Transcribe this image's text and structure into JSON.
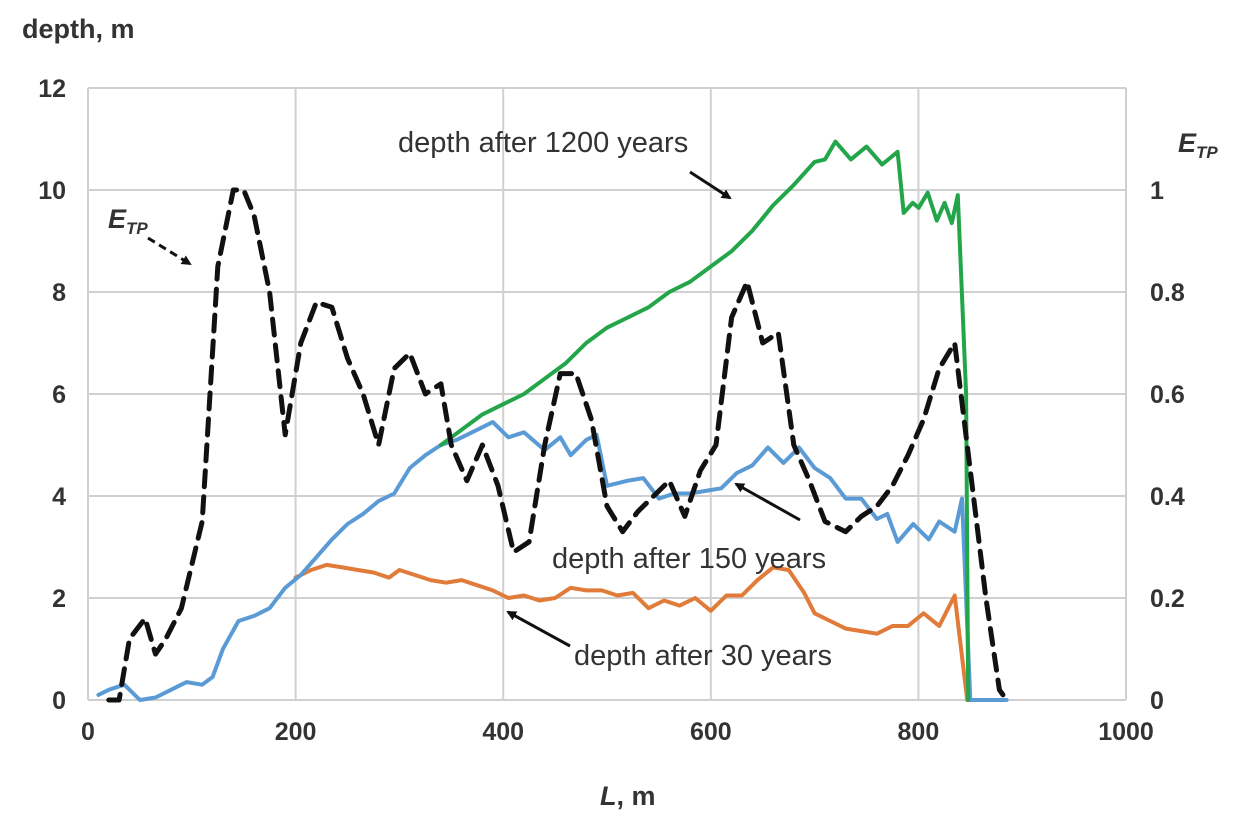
{
  "chart_data": {
    "type": "line",
    "y_title": "depth, m",
    "x_title_italic": "L",
    "x_title_rest": ", m",
    "y2_title_main": "E",
    "y2_title_sub": "TP",
    "xlim": [
      0,
      1000
    ],
    "ylim": [
      0,
      12
    ],
    "y2lim": [
      0,
      1.2
    ],
    "x_ticks": [
      "0",
      "200",
      "400",
      "600",
      "800",
      "1000"
    ],
    "y_ticks": [
      "0",
      "2",
      "4",
      "6",
      "8",
      "10",
      "12"
    ],
    "y2_ticks": [
      "0",
      "0.2",
      "0.4",
      "0.6",
      "0.8",
      "1"
    ],
    "grid": true,
    "series": [
      {
        "name": "depth after 30 years",
        "axis": "left",
        "color": "#E07B39",
        "dashed": false,
        "points": [
          [
            200,
            2.4
          ],
          [
            215,
            2.55
          ],
          [
            230,
            2.65
          ],
          [
            245,
            2.6
          ],
          [
            260,
            2.55
          ],
          [
            275,
            2.5
          ],
          [
            290,
            2.4
          ],
          [
            300,
            2.55
          ],
          [
            315,
            2.45
          ],
          [
            330,
            2.35
          ],
          [
            345,
            2.3
          ],
          [
            360,
            2.35
          ],
          [
            375,
            2.25
          ],
          [
            390,
            2.15
          ],
          [
            405,
            2.0
          ],
          [
            420,
            2.05
          ],
          [
            435,
            1.95
          ],
          [
            450,
            2.0
          ],
          [
            465,
            2.2
          ],
          [
            480,
            2.15
          ],
          [
            495,
            2.15
          ],
          [
            510,
            2.05
          ],
          [
            525,
            2.1
          ],
          [
            540,
            1.8
          ],
          [
            555,
            1.95
          ],
          [
            570,
            1.85
          ],
          [
            585,
            2.0
          ],
          [
            600,
            1.75
          ],
          [
            615,
            2.05
          ],
          [
            630,
            2.05
          ],
          [
            645,
            2.35
          ],
          [
            660,
            2.6
          ],
          [
            675,
            2.55
          ],
          [
            690,
            2.1
          ],
          [
            700,
            1.7
          ],
          [
            715,
            1.55
          ],
          [
            730,
            1.4
          ],
          [
            745,
            1.35
          ],
          [
            760,
            1.3
          ],
          [
            775,
            1.45
          ],
          [
            790,
            1.45
          ],
          [
            805,
            1.7
          ],
          [
            820,
            1.45
          ],
          [
            835,
            2.05
          ],
          [
            847,
            0
          ]
        ]
      },
      {
        "name": "depth after 150 years",
        "axis": "left",
        "color": "#5B9BD5",
        "dashed": false,
        "points": [
          [
            10,
            0.1
          ],
          [
            20,
            0.2
          ],
          [
            35,
            0.3
          ],
          [
            50,
            0.0
          ],
          [
            65,
            0.05
          ],
          [
            80,
            0.2
          ],
          [
            95,
            0.35
          ],
          [
            110,
            0.3
          ],
          [
            120,
            0.45
          ],
          [
            130,
            1.0
          ],
          [
            145,
            1.55
          ],
          [
            160,
            1.65
          ],
          [
            175,
            1.8
          ],
          [
            190,
            2.2
          ],
          [
            205,
            2.45
          ],
          [
            220,
            2.8
          ],
          [
            235,
            3.15
          ],
          [
            250,
            3.45
          ],
          [
            265,
            3.65
          ],
          [
            280,
            3.9
          ],
          [
            295,
            4.05
          ],
          [
            310,
            4.55
          ],
          [
            325,
            4.8
          ],
          [
            340,
            5.0
          ],
          [
            355,
            5.1
          ],
          [
            370,
            5.25
          ],
          [
            390,
            5.45
          ],
          [
            405,
            5.15
          ],
          [
            420,
            5.25
          ],
          [
            440,
            4.9
          ],
          [
            455,
            5.15
          ],
          [
            465,
            4.8
          ],
          [
            480,
            5.1
          ],
          [
            490,
            5.2
          ],
          [
            500,
            4.2
          ],
          [
            520,
            4.3
          ],
          [
            535,
            4.35
          ],
          [
            550,
            3.95
          ],
          [
            565,
            4.05
          ],
          [
            580,
            4.05
          ],
          [
            595,
            4.1
          ],
          [
            610,
            4.15
          ],
          [
            625,
            4.45
          ],
          [
            640,
            4.6
          ],
          [
            655,
            4.95
          ],
          [
            670,
            4.65
          ],
          [
            685,
            4.95
          ],
          [
            700,
            4.55
          ],
          [
            715,
            4.35
          ],
          [
            730,
            3.95
          ],
          [
            745,
            3.95
          ],
          [
            760,
            3.55
          ],
          [
            770,
            3.65
          ],
          [
            780,
            3.1
          ],
          [
            795,
            3.45
          ],
          [
            810,
            3.15
          ],
          [
            820,
            3.5
          ],
          [
            835,
            3.3
          ],
          [
            842,
            3.95
          ],
          [
            850,
            0
          ],
          [
            885,
            0
          ]
        ]
      },
      {
        "name": "depth after 1200 years",
        "axis": "left",
        "color": "#23A64A",
        "dashed": false,
        "points": [
          [
            340,
            5.0
          ],
          [
            360,
            5.3
          ],
          [
            380,
            5.6
          ],
          [
            400,
            5.8
          ],
          [
            420,
            6.0
          ],
          [
            440,
            6.3
          ],
          [
            460,
            6.6
          ],
          [
            480,
            7.0
          ],
          [
            500,
            7.3
          ],
          [
            520,
            7.5
          ],
          [
            540,
            7.7
          ],
          [
            560,
            8.0
          ],
          [
            580,
            8.2
          ],
          [
            600,
            8.5
          ],
          [
            620,
            8.8
          ],
          [
            640,
            9.2
          ],
          [
            660,
            9.7
          ],
          [
            680,
            10.1
          ],
          [
            700,
            10.55
          ],
          [
            710,
            10.6
          ],
          [
            720,
            10.95
          ],
          [
            735,
            10.6
          ],
          [
            750,
            10.85
          ],
          [
            765,
            10.5
          ],
          [
            780,
            10.75
          ],
          [
            790,
            9.55
          ],
          [
            805,
            9.75
          ],
          [
            815,
            9.65
          ],
          [
            830,
            9.95
          ],
          [
            845,
            9.4
          ],
          [
            858,
            9.75
          ],
          [
            870,
            9.35
          ],
          [
            880,
            9.9
          ],
          [
            850,
            6.0
          ],
          [
            848,
            0
          ]
        ]
      },
      {
        "name": "E_TP",
        "axis": "right",
        "color": "#111111",
        "dashed": true,
        "points": [
          [
            20,
            0
          ],
          [
            30,
            0.0
          ],
          [
            40,
            0.12
          ],
          [
            55,
            0.16
          ],
          [
            65,
            0.09
          ],
          [
            75,
            0.12
          ],
          [
            90,
            0.18
          ],
          [
            110,
            0.35
          ],
          [
            125,
            0.85
          ],
          [
            140,
            1.0
          ],
          [
            150,
            1.0
          ],
          [
            160,
            0.95
          ],
          [
            175,
            0.8
          ],
          [
            190,
            0.52
          ],
          [
            205,
            0.7
          ],
          [
            220,
            0.78
          ],
          [
            235,
            0.77
          ],
          [
            250,
            0.67
          ],
          [
            265,
            0.6
          ],
          [
            280,
            0.5
          ],
          [
            295,
            0.65
          ],
          [
            310,
            0.68
          ],
          [
            325,
            0.6
          ],
          [
            340,
            0.62
          ],
          [
            350,
            0.5
          ],
          [
            365,
            0.43
          ],
          [
            380,
            0.5
          ],
          [
            395,
            0.42
          ],
          [
            410,
            0.29
          ],
          [
            425,
            0.31
          ],
          [
            440,
            0.5
          ],
          [
            455,
            0.64
          ],
          [
            470,
            0.64
          ],
          [
            485,
            0.55
          ],
          [
            500,
            0.38
          ],
          [
            515,
            0.33
          ],
          [
            530,
            0.37
          ],
          [
            545,
            0.4
          ],
          [
            560,
            0.43
          ],
          [
            575,
            0.36
          ],
          [
            590,
            0.45
          ],
          [
            605,
            0.5
          ],
          [
            620,
            0.75
          ],
          [
            635,
            0.82
          ],
          [
            650,
            0.7
          ],
          [
            665,
            0.72
          ],
          [
            680,
            0.5
          ],
          [
            695,
            0.43
          ],
          [
            710,
            0.35
          ],
          [
            730,
            0.33
          ],
          [
            745,
            0.36
          ],
          [
            760,
            0.38
          ],
          [
            775,
            0.42
          ],
          [
            790,
            0.48
          ],
          [
            805,
            0.55
          ],
          [
            820,
            0.65
          ],
          [
            835,
            0.7
          ],
          [
            850,
            0.45
          ],
          [
            865,
            0.2
          ],
          [
            878,
            0.02
          ],
          [
            885,
            0
          ]
        ]
      }
    ]
  },
  "annotations": {
    "depth_1200": "depth after 1200 years",
    "depth_150": "depth after 150 years",
    "depth_30": "depth after 30 years",
    "etp_main": "E",
    "etp_sub": "TP"
  }
}
